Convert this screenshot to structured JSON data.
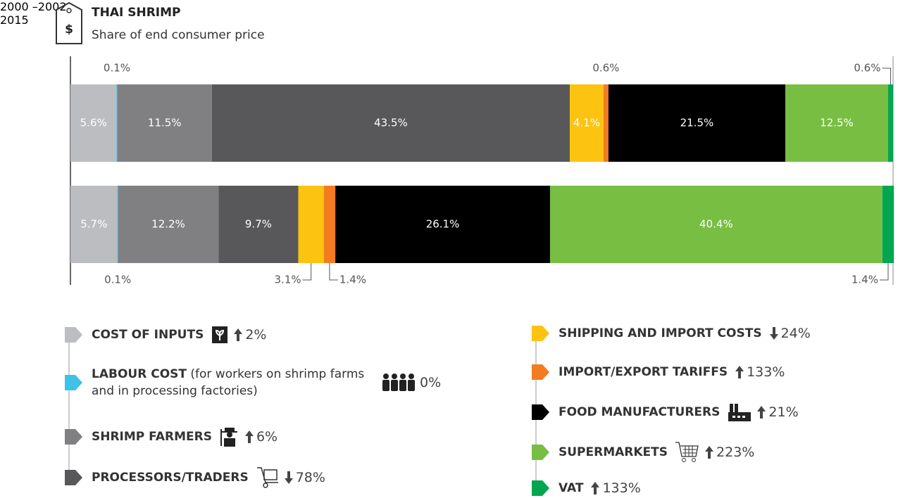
{
  "chart_data": {
    "type": "stacked-bar-horizontal",
    "title": "THAI SHRIMP",
    "subtitle": "Share of end consumer price",
    "categories": [
      "2000\n–2002",
      "2015"
    ],
    "xlim": [
      0,
      100
    ],
    "series": [
      {
        "name": "COST OF INPUTS",
        "color": "#bcbdc0",
        "values": [
          5.6,
          5.7
        ],
        "value_labels": [
          "5.6%",
          "5.7%"
        ],
        "change": "2%",
        "direction": "up"
      },
      {
        "name": "LABOUR COST",
        "note": "(for workers on shrimp farms and in processing factories)",
        "color": "#3fc1e8",
        "values": [
          0.1,
          0.1
        ],
        "value_labels": [
          "0.1%",
          "0.1%"
        ],
        "change": "0%",
        "direction": null
      },
      {
        "name": "SHRIMP FARMERS",
        "color": "#808083",
        "values": [
          11.5,
          12.2
        ],
        "value_labels": [
          "11.5%",
          "12.2%"
        ],
        "change": "6%",
        "direction": "up"
      },
      {
        "name": "PROCESSORS/TRADERS",
        "color": "#58585a",
        "values": [
          43.5,
          9.7
        ],
        "value_labels": [
          "43.5%",
          "9.7%"
        ],
        "change": "78%",
        "direction": "down"
      },
      {
        "name": "SHIPPING AND IMPORT COSTS",
        "color": "#fdc311",
        "values": [
          4.1,
          3.1
        ],
        "value_labels": [
          "4.1%",
          "3.1%"
        ],
        "change": "24%",
        "direction": "down"
      },
      {
        "name": "IMPORT/EXPORT TARIFFS",
        "color": "#f37b20",
        "values": [
          0.6,
          1.4
        ],
        "value_labels": [
          "0.6%",
          "1.4%"
        ],
        "change": "133%",
        "direction": "up"
      },
      {
        "name": "FOOD MANUFACTURERS",
        "color": "#000000",
        "values": [
          21.5,
          26.1
        ],
        "value_labels": [
          "21.5%",
          "26.1%"
        ],
        "change": "21%",
        "direction": "up"
      },
      {
        "name": "SUPERMARKETS",
        "color": "#77be43",
        "values": [
          12.5,
          40.4
        ],
        "value_labels": [
          "12.5%",
          "40.4%"
        ],
        "change": "223%",
        "direction": "up"
      },
      {
        "name": "VAT",
        "color": "#00a650",
        "values": [
          0.6,
          1.4
        ],
        "value_labels": [
          "0.6%",
          "1.4%"
        ],
        "change": "133%",
        "direction": "up"
      }
    ]
  }
}
